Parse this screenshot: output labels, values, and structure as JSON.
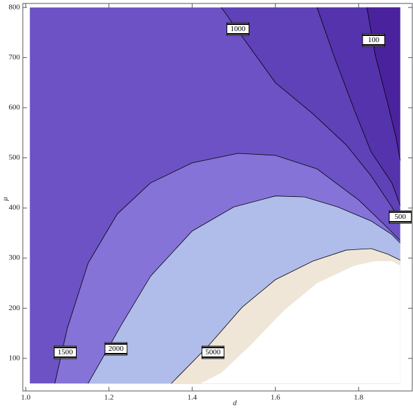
{
  "chart_data": {
    "type": "contour",
    "x_label": "d",
    "y_label": "μ",
    "xlim": [
      0.993,
      1.929
    ],
    "ylim": [
      35,
      808
    ],
    "xticks": [
      {
        "value": 1,
        "label": "1.0"
      },
      1.2,
      1.4,
      1.6,
      1.8
    ],
    "yticks": [
      100,
      200,
      300,
      400,
      500,
      600,
      700,
      800
    ],
    "region_x": [
      1.01,
      1.9
    ],
    "region_y": [
      50,
      800
    ],
    "base_color": "#6c52c4",
    "lines": [
      {
        "level": 1000,
        "side": "top",
        "fill": "#5f41b8",
        "label_x": 1.51,
        "label_y": 757,
        "x": [
          1.47,
          1.54,
          1.6,
          1.69,
          1.77,
          1.83,
          1.88,
          1.9
        ],
        "y": [
          800,
          719,
          650,
          588,
          526,
          464,
          402,
          374
        ]
      },
      {
        "level": 500,
        "side": "top",
        "fill": "#5533ad",
        "label_x": 1.9,
        "label_y": 382,
        "x": [
          1.7,
          1.74,
          1.79,
          1.83,
          1.88,
          1.9
        ],
        "y": [
          800,
          705,
          595,
          512,
          450,
          405
        ]
      },
      {
        "level": 100,
        "side": "top",
        "fill": "#4b229e",
        "label_x": 1.836,
        "label_y": 735,
        "x": [
          1.82,
          1.84,
          1.87,
          1.89,
          1.9
        ],
        "y": [
          800,
          705,
          608,
          540,
          495
        ]
      },
      {
        "level": 1500,
        "side": "bottom",
        "fill": "#8573d8",
        "label_x": 1.095,
        "label_y": 112,
        "x": [
          1.07,
          1.1,
          1.15,
          1.22,
          1.3,
          1.4,
          1.51,
          1.6,
          1.7,
          1.8,
          1.87,
          1.9
        ],
        "y": [
          50,
          160,
          290,
          388,
          450,
          490,
          509,
          505,
          478,
          416,
          360,
          335
        ]
      },
      {
        "level": 2000,
        "side": "bottom",
        "fill": "#b0bcea",
        "label_x": 1.217,
        "label_y": 119,
        "x": [
          1.15,
          1.23,
          1.3,
          1.4,
          1.5,
          1.6,
          1.67,
          1.75,
          1.83,
          1.88,
          1.9
        ],
        "y": [
          50,
          167,
          264,
          354,
          402,
          424,
          422,
          402,
          374,
          347,
          330
        ]
      },
      {
        "level": 5000,
        "side": "bottom",
        "fill": "#efe6d7",
        "label_x": 1.45,
        "label_y": 112,
        "x": [
          1.35,
          1.44,
          1.52,
          1.6,
          1.69,
          1.77,
          1.83,
          1.87,
          1.9
        ],
        "y": [
          50,
          126,
          202,
          257,
          294,
          316,
          319,
          308,
          296
        ]
      }
    ],
    "domain_edge": {
      "fill": "#ffffff",
      "x": [
        1.42,
        1.47,
        1.54,
        1.62,
        1.7,
        1.79,
        1.84,
        1.88,
        1.9
      ],
      "y": [
        50,
        71,
        126,
        195,
        250,
        285,
        294,
        294,
        285
      ]
    }
  }
}
